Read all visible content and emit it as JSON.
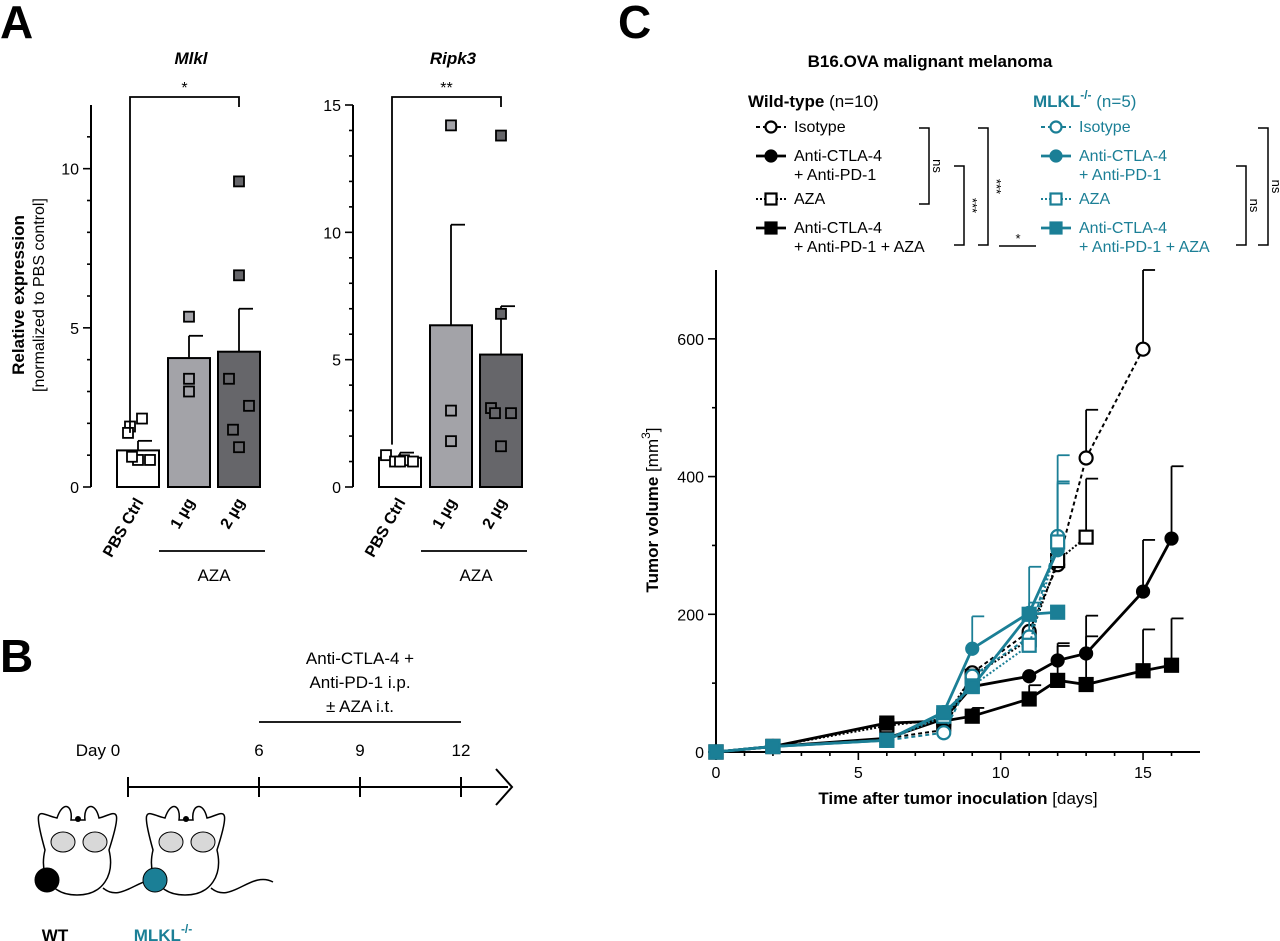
{
  "panels": {
    "a": "A",
    "b": "B",
    "c": "C"
  },
  "colors": {
    "wt": "#000000",
    "ko": "#1b7f96",
    "bar_light": "#ffffff",
    "bar_mid": "#a3a3a8",
    "bar_dark": "#66666a"
  },
  "chart_data": [
    {
      "type": "bar",
      "title": "Mlkl",
      "ylabel": "Relative expression",
      "ylabel2": "[normalized to PBS control]",
      "categories": [
        "PBS Ctrl",
        "1 µg",
        "2 µg"
      ],
      "group_label": "AZA",
      "ylim": [
        0,
        12
      ],
      "yticks": [
        0,
        5,
        10
      ],
      "means": [
        1.15,
        4.05,
        4.25
      ],
      "errors": [
        0.3,
        0.7,
        1.35
      ],
      "points": [
        [
          1.9,
          2.15,
          1.7,
          0.85,
          0.85,
          0.95
        ],
        [
          5.35,
          3.4,
          3.0
        ],
        [
          9.6,
          6.65,
          3.4,
          2.55,
          1.8,
          1.25
        ]
      ],
      "significance": [
        {
          "from": 0,
          "to": 2,
          "label": "*"
        }
      ]
    },
    {
      "type": "bar",
      "title": "Ripk3",
      "categories": [
        "PBS Ctrl",
        "1 µg",
        "2 µg"
      ],
      "group_label": "AZA",
      "ylim": [
        0,
        15
      ],
      "yticks": [
        0,
        5,
        10,
        15
      ],
      "means": [
        1.15,
        6.35,
        5.2
      ],
      "errors": [
        0.2,
        3.95,
        1.9
      ],
      "points": [
        [
          1.25,
          1.0,
          1.05,
          1.0,
          1.0
        ],
        [
          14.2,
          3.0,
          1.8
        ],
        [
          13.8,
          6.8,
          3.1,
          2.9,
          2.9,
          1.6
        ]
      ],
      "significance": [
        {
          "from": 0,
          "to": 2,
          "label": "**"
        }
      ]
    },
    {
      "type": "line",
      "title": "B16.OVA malignant melanoma",
      "xlabel": "Time after tumor inoculation",
      "xlabel_unit": "[days]",
      "ylabel": "Tumor volume [mm",
      "ylabel_sup": "3",
      "ylabel_end": "]",
      "xlim": [
        0,
        17
      ],
      "ylim": [
        0,
        700
      ],
      "xticks": [
        0,
        5,
        10,
        15
      ],
      "yticks": [
        0,
        200,
        400,
        600
      ],
      "legend_groups": [
        {
          "name": "Wild-type",
          "n": "(n=10)",
          "sup": ""
        },
        {
          "name": "MLKL",
          "n": "(n=5)",
          "sup": "-/-"
        }
      ],
      "legend_labels": [
        [
          "Isotype"
        ],
        [
          "Anti-CTLA-4",
          "+ Anti-PD-1"
        ],
        [
          "AZA"
        ],
        [
          "Anti-CTLA-4",
          "+ Anti-PD-1 + AZA"
        ]
      ],
      "stats": [
        {
          "label": "ns"
        },
        {
          "label": "***"
        },
        {
          "label": "***"
        },
        {
          "label": "*"
        },
        {
          "label": "ns"
        },
        {
          "label": "ns"
        }
      ],
      "series": [
        {
          "group": "wt",
          "marker": "circle-open",
          "dash": "4,3",
          "x": [
            0,
            2,
            6,
            8,
            9,
            11,
            12,
            13,
            15
          ],
          "y": [
            0,
            8,
            20,
            32,
            115,
            175,
            272,
            427,
            585
          ],
          "err": [
            0,
            0,
            0,
            0,
            0,
            0,
            0,
            70,
            115
          ]
        },
        {
          "group": "wt",
          "marker": "circle-filled",
          "dash": "",
          "x": [
            0,
            2,
            6,
            8,
            9,
            11,
            12,
            13,
            15,
            16
          ],
          "y": [
            0,
            8,
            20,
            48,
            95,
            110,
            133,
            143,
            233,
            310
          ],
          "err": [
            0,
            0,
            0,
            0,
            0,
            0,
            25,
            55,
            75,
            105
          ]
        },
        {
          "group": "wt",
          "marker": "square-open",
          "dash": "2,2",
          "x": [
            0,
            2,
            6,
            8,
            9,
            11,
            12,
            13
          ],
          "y": [
            0,
            8,
            38,
            48,
            110,
            163,
            278,
            312
          ],
          "err": [
            0,
            0,
            0,
            0,
            0,
            0,
            0,
            85
          ]
        },
        {
          "group": "wt",
          "marker": "square-filled",
          "dash": "",
          "x": [
            0,
            2,
            6,
            8,
            9,
            11,
            12,
            13,
            15,
            16
          ],
          "y": [
            0,
            8,
            42,
            45,
            52,
            77,
            104,
            98,
            118,
            126
          ],
          "err": [
            0,
            0,
            0,
            0,
            12,
            20,
            50,
            70,
            60,
            68
          ]
        },
        {
          "group": "ko",
          "marker": "circle-open",
          "dash": "4,3",
          "x": [
            0,
            2,
            6,
            8,
            9,
            11,
            12
          ],
          "y": [
            0,
            8,
            17,
            28,
            110,
            167,
            313
          ],
          "err": [
            0,
            0,
            0,
            0,
            0,
            50,
            118
          ]
        },
        {
          "group": "ko",
          "marker": "circle-filled",
          "dash": "",
          "x": [
            0,
            2,
            6,
            8,
            9,
            11,
            12
          ],
          "y": [
            0,
            8,
            17,
            58,
            150,
            202,
            293
          ],
          "err": [
            0,
            0,
            0,
            0,
            47,
            67,
            100
          ]
        },
        {
          "group": "ko",
          "marker": "square-open",
          "dash": "2,2",
          "x": [
            0,
            2,
            6,
            8,
            9,
            11,
            12
          ],
          "y": [
            0,
            8,
            17,
            52,
            96,
            155,
            305
          ],
          "err": [
            0,
            0,
            0,
            0,
            0,
            0,
            85
          ]
        },
        {
          "group": "ko",
          "marker": "square-filled",
          "dash": "",
          "x": [
            0,
            2,
            6,
            8,
            9,
            11,
            12
          ],
          "y": [
            0,
            8,
            17,
            57,
            95,
            200,
            203
          ],
          "err": [
            0,
            0,
            0,
            0,
            0,
            0,
            0
          ]
        }
      ]
    }
  ],
  "timeline": {
    "treatment": [
      "Anti-CTLA-4 +",
      "Anti-PD-1 i.p.",
      "± AZA i.t."
    ],
    "day_prefix": "Day",
    "days": [
      0,
      6,
      9,
      12
    ],
    "mice": [
      {
        "label": "WT",
        "sup": ""
      },
      {
        "label": "MLKL",
        "sup": "-/-"
      }
    ]
  }
}
